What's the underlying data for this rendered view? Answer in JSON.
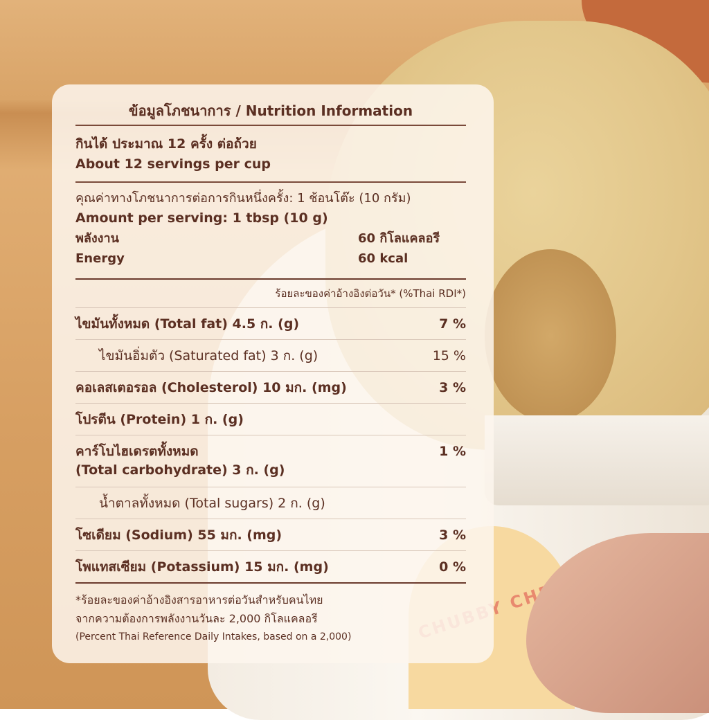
{
  "title": "ข้อมูลโภชนาการ / Nutrition Information",
  "servings": {
    "th": "กินได้ ประมาณ 12 ครั้ง ต่อถ้วย",
    "en": "About 12 servings per cup"
  },
  "amount": {
    "th": "คุณค่าทางโภชนาการต่อการกินหนึ่งครั้ง: 1 ช้อนโต๊ะ (10 กรัม)",
    "en": "Amount per serving: 1 tbsp (10 g)"
  },
  "energy": {
    "label_th": "พลังงาน",
    "value_th": "60 กิโลแคลอรี",
    "label_en": "Energy",
    "value_en": "60 kcal"
  },
  "rdi_header": "ร้อยละของค่าอ้างอิงต่อวัน* (%Thai RDI*)",
  "nutrients": [
    {
      "label": "ไขมันทั้งหมด (Total fat) 4.5 ก. (g)",
      "pct": "7 %"
    },
    {
      "label": "ไขมันอิ่มตัว (Saturated fat) 3 ก. (g)",
      "pct": "15 %"
    },
    {
      "label": "คอเลสเตอรอล (Cholesterol) 10 มก. (mg)",
      "pct": "3 %"
    },
    {
      "label": "โปรตีน (Protein) 1 ก. (g)",
      "pct": ""
    },
    {
      "label": "คาร์โบไฮเดรตทั้งหมด",
      "label2": "(Total carbohydrate) 3 ก. (g)",
      "pct": "1 %"
    },
    {
      "label": "น้ำตาลทั้งหมด (Total sugars) 2 ก. (g)",
      "pct": ""
    },
    {
      "label": "โซเดียม (Sodium) 55 มก. (mg)",
      "pct": "3 %"
    },
    {
      "label": "โพแทสเซียม (Potassium) 15 มก. (mg)",
      "pct": "0 %"
    }
  ],
  "footnote": {
    "line1": "*ร้อยละของค่าอ้างอิงสารอาหารต่อวันสำหรับคนไทย",
    "line2": "จากความต้องการพลังงานวันละ 2,000 กิโลแคลอรี",
    "line3": "(Percent Thai Reference Daily Intakes, based on a 2,000)"
  },
  "logo_text": "CHUBBY CHE",
  "colors": {
    "text": "#5b2f22",
    "card": "#fdf6ee"
  }
}
